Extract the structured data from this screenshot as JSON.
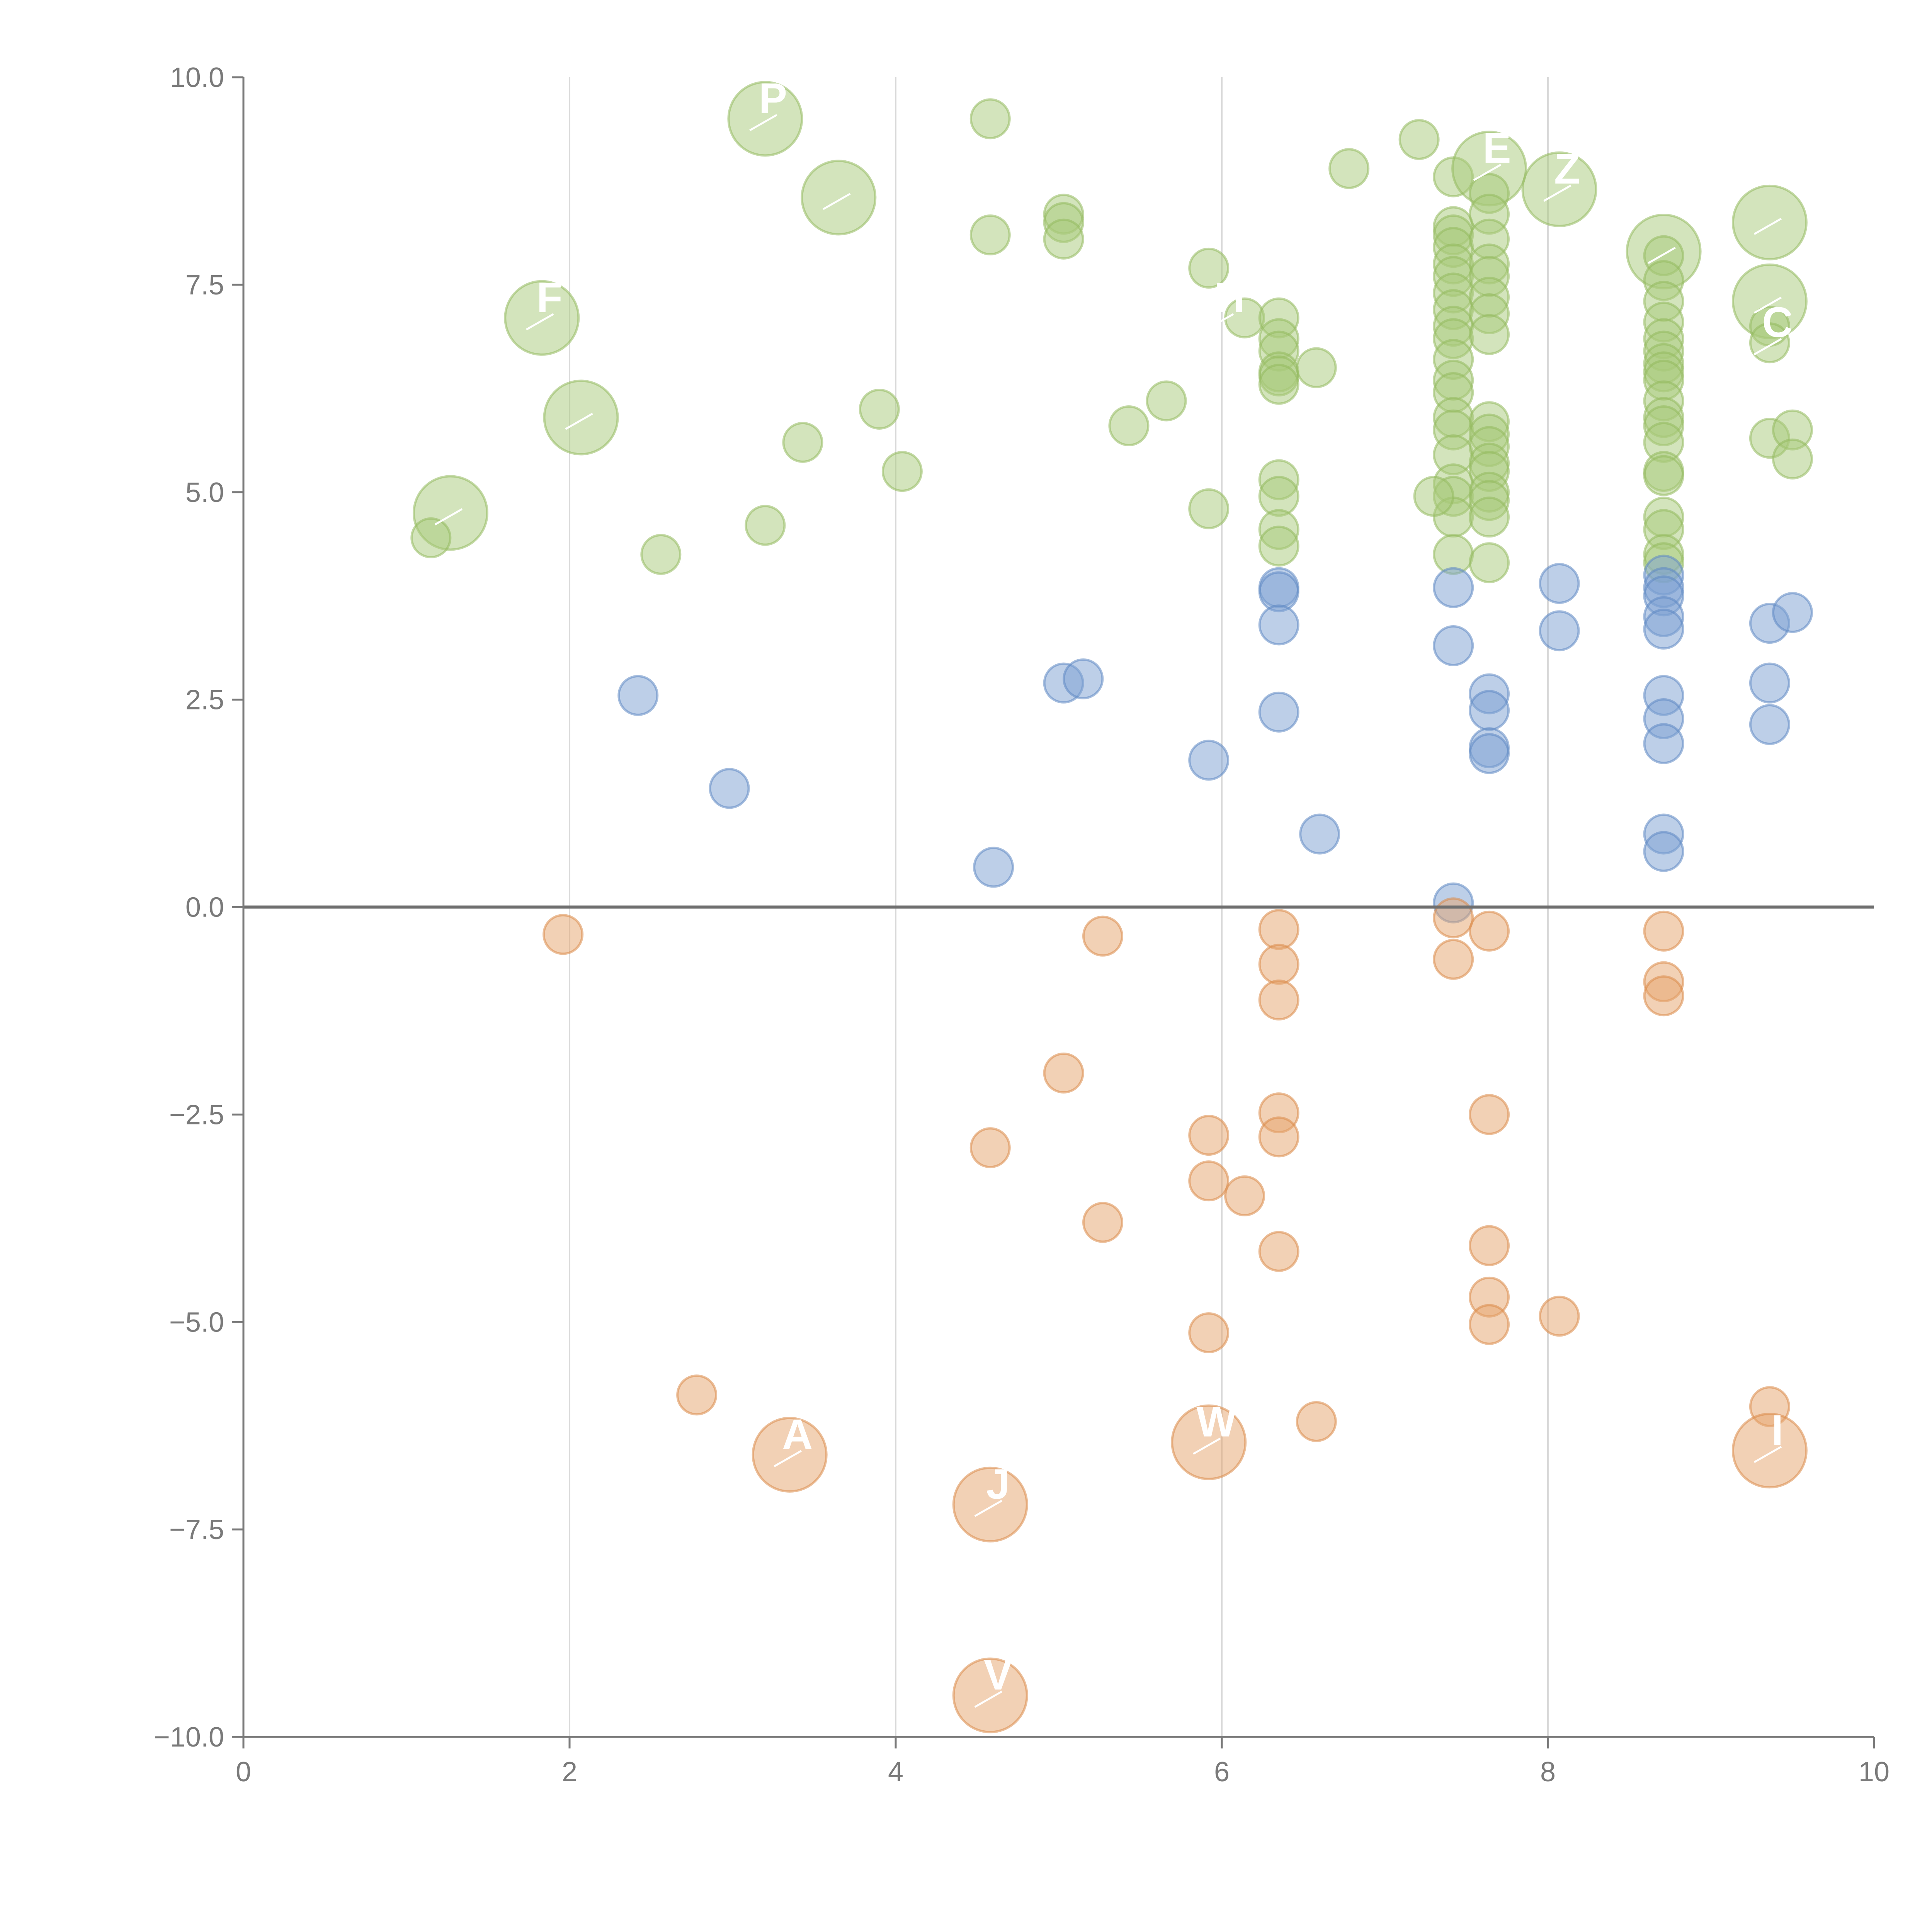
{
  "chart_data": {
    "type": "scatter",
    "title": "",
    "xlabel": "",
    "ylabel": "",
    "xlim": [
      0,
      10
    ],
    "ylim": [
      -10,
      10
    ],
    "x_ticks": [
      0,
      2,
      4,
      6,
      8,
      10
    ],
    "x_tick_labels": [
      "0",
      "2",
      "4",
      "6",
      "8",
      "10"
    ],
    "y_ticks": [
      -10,
      -7.5,
      -5,
      -2.5,
      0,
      2.5,
      5,
      7.5,
      10
    ],
    "y_tick_labels": [
      "−10.0",
      "−7.5",
      "−5.0",
      "−2.5",
      "0.0",
      "2.5",
      "5.0",
      "7.5",
      "10.0"
    ],
    "vertical_grid_at": [
      2,
      4,
      6,
      8
    ],
    "zero_line": true,
    "colors": {
      "green": "#a8c97a",
      "blue": "#7b9fd1",
      "orange": "#e6a36b",
      "green_stroke": "#93ba5e",
      "blue_stroke": "#5f88c2",
      "orange_stroke": "#db8a48"
    },
    "series": [
      {
        "name": "green",
        "points": [
          [
            3.2,
            9.5
          ],
          [
            4.58,
            9.5
          ],
          [
            3.65,
            8.55
          ],
          [
            4.58,
            8.1
          ],
          [
            5.03,
            8.35
          ],
          [
            5.03,
            8.25
          ],
          [
            5.03,
            8.05
          ],
          [
            1.83,
            7.1
          ],
          [
            2.07,
            5.9
          ],
          [
            1.27,
            4.75
          ],
          [
            1.15,
            4.45
          ],
          [
            2.56,
            4.25
          ],
          [
            3.2,
            4.6
          ],
          [
            3.43,
            5.6
          ],
          [
            3.9,
            6.0
          ],
          [
            4.04,
            5.25
          ],
          [
            5.43,
            5.8
          ],
          [
            5.66,
            6.1
          ],
          [
            5.92,
            7.7
          ],
          [
            5.92,
            4.8
          ],
          [
            6.14,
            7.1
          ],
          [
            6.35,
            7.1
          ],
          [
            6.35,
            6.85
          ],
          [
            6.35,
            6.7
          ],
          [
            6.35,
            6.45
          ],
          [
            6.35,
            6.4
          ],
          [
            6.35,
            6.3
          ],
          [
            6.35,
            5.15
          ],
          [
            6.35,
            4.95
          ],
          [
            6.35,
            4.55
          ],
          [
            6.35,
            4.35
          ],
          [
            6.58,
            6.5
          ],
          [
            6.78,
            8.9
          ],
          [
            7.21,
            9.25
          ],
          [
            7.42,
            8.8
          ],
          [
            7.42,
            8.2
          ],
          [
            7.42,
            8.1
          ],
          [
            7.42,
            7.95
          ],
          [
            7.42,
            7.75
          ],
          [
            7.42,
            7.6
          ],
          [
            7.42,
            7.4
          ],
          [
            7.42,
            7.2
          ],
          [
            7.42,
            7.0
          ],
          [
            7.42,
            6.85
          ],
          [
            7.42,
            6.6
          ],
          [
            7.42,
            6.35
          ],
          [
            7.42,
            6.2
          ],
          [
            7.42,
            5.9
          ],
          [
            7.42,
            5.75
          ],
          [
            7.42,
            5.45
          ],
          [
            7.42,
            5.1
          ],
          [
            7.42,
            4.95
          ],
          [
            7.42,
            4.7
          ],
          [
            7.42,
            4.25
          ],
          [
            7.3,
            4.95
          ],
          [
            7.64,
            8.9
          ],
          [
            7.64,
            8.6
          ],
          [
            7.64,
            8.35
          ],
          [
            7.64,
            8.05
          ],
          [
            7.64,
            7.75
          ],
          [
            7.64,
            7.6
          ],
          [
            7.64,
            7.35
          ],
          [
            7.64,
            7.15
          ],
          [
            7.64,
            6.9
          ],
          [
            7.64,
            5.85
          ],
          [
            7.64,
            5.7
          ],
          [
            7.64,
            5.55
          ],
          [
            7.64,
            5.35
          ],
          [
            7.64,
            5.25
          ],
          [
            7.64,
            5.0
          ],
          [
            7.64,
            4.9
          ],
          [
            7.64,
            4.7
          ],
          [
            7.64,
            4.15
          ],
          [
            8.07,
            8.65
          ],
          [
            8.71,
            7.9
          ],
          [
            8.71,
            7.85
          ],
          [
            8.71,
            7.55
          ],
          [
            8.71,
            7.3
          ],
          [
            8.71,
            7.05
          ],
          [
            8.71,
            6.85
          ],
          [
            8.71,
            6.7
          ],
          [
            8.71,
            6.55
          ],
          [
            8.71,
            6.45
          ],
          [
            8.71,
            6.35
          ],
          [
            8.71,
            6.1
          ],
          [
            8.71,
            5.9
          ],
          [
            8.71,
            5.8
          ],
          [
            8.71,
            5.6
          ],
          [
            8.71,
            5.25
          ],
          [
            8.71,
            5.2
          ],
          [
            8.71,
            4.7
          ],
          [
            8.71,
            4.55
          ],
          [
            8.71,
            4.25
          ],
          [
            8.71,
            4.15
          ],
          [
            9.36,
            8.25
          ],
          [
            9.36,
            7.3
          ],
          [
            9.36,
            7.0
          ],
          [
            9.36,
            6.8
          ],
          [
            9.36,
            5.65
          ],
          [
            9.5,
            5.75
          ],
          [
            9.5,
            5.4
          ]
        ],
        "sizes": [
          "L",
          "S",
          "L",
          "S",
          "S",
          "S",
          "S",
          "L",
          "L",
          "L",
          "S",
          "S",
          "S",
          "S",
          "S",
          "S",
          "S",
          "S",
          "S",
          "S",
          "S",
          "S",
          "S",
          "S",
          "S",
          "S",
          "S",
          "S",
          "S",
          "S",
          "S",
          "S",
          "S",
          "S",
          "S",
          "S",
          "S",
          "S",
          "S",
          "S",
          "S",
          "S",
          "S",
          "S",
          "S",
          "S",
          "S",
          "S",
          "S",
          "S",
          "S",
          "S",
          "S",
          "S",
          "S",
          "L",
          "S",
          "S",
          "S",
          "S",
          "S",
          "S",
          "S",
          "S",
          "S",
          "S",
          "S",
          "S",
          "S",
          "S",
          "S",
          "S",
          "S",
          "L",
          "L",
          "S",
          "S",
          "S",
          "S",
          "S",
          "S",
          "S",
          "S",
          "S",
          "S",
          "S",
          "S",
          "S",
          "S",
          "S",
          "S",
          "S",
          "S",
          "S",
          "L",
          "L",
          "S",
          "S",
          "S",
          "S",
          "S"
        ]
      },
      {
        "name": "blue",
        "points": [
          [
            2.42,
            2.55
          ],
          [
            2.98,
            1.43
          ],
          [
            4.6,
            0.48
          ],
          [
            5.03,
            2.7
          ],
          [
            5.15,
            2.75
          ],
          [
            5.92,
            1.77
          ],
          [
            6.35,
            3.85
          ],
          [
            6.35,
            3.8
          ],
          [
            6.35,
            3.4
          ],
          [
            6.35,
            2.35
          ],
          [
            6.6,
            0.88
          ],
          [
            7.42,
            3.85
          ],
          [
            7.42,
            3.15
          ],
          [
            7.42,
            0.05
          ],
          [
            7.64,
            2.57
          ],
          [
            7.64,
            2.37
          ],
          [
            7.64,
            1.92
          ],
          [
            7.64,
            1.85
          ],
          [
            8.07,
            3.9
          ],
          [
            8.07,
            3.33
          ],
          [
            8.71,
            4.0
          ],
          [
            8.71,
            3.85
          ],
          [
            8.71,
            3.75
          ],
          [
            8.71,
            3.5
          ],
          [
            8.71,
            3.35
          ],
          [
            8.71,
            2.55
          ],
          [
            8.71,
            2.27
          ],
          [
            8.71,
            1.97
          ],
          [
            8.71,
            0.88
          ],
          [
            8.71,
            0.67
          ],
          [
            9.36,
            3.42
          ],
          [
            9.36,
            2.7
          ],
          [
            9.36,
            2.2
          ],
          [
            9.5,
            3.55
          ]
        ],
        "sizes": []
      },
      {
        "name": "orange",
        "points": [
          [
            1.96,
            -0.33
          ],
          [
            2.78,
            -5.88
          ],
          [
            3.35,
            -6.6
          ],
          [
            4.58,
            -2.9
          ],
          [
            4.58,
            -7.2
          ],
          [
            4.58,
            -9.5
          ],
          [
            5.03,
            -2.0
          ],
          [
            5.27,
            -0.35
          ],
          [
            5.27,
            -3.8
          ],
          [
            5.92,
            -2.75
          ],
          [
            5.92,
            -3.3
          ],
          [
            5.92,
            -5.13
          ],
          [
            5.92,
            -6.45
          ],
          [
            6.14,
            -3.48
          ],
          [
            6.35,
            -0.27
          ],
          [
            6.35,
            -0.69
          ],
          [
            6.35,
            -1.12
          ],
          [
            6.35,
            -2.48
          ],
          [
            6.35,
            -2.77
          ],
          [
            6.35,
            -4.15
          ],
          [
            6.58,
            -6.2
          ],
          [
            7.42,
            -0.13
          ],
          [
            7.42,
            -0.63
          ],
          [
            7.64,
            -0.29
          ],
          [
            7.64,
            -2.5
          ],
          [
            7.64,
            -4.08
          ],
          [
            7.64,
            -4.7
          ],
          [
            7.64,
            -5.03
          ],
          [
            8.07,
            -4.93
          ],
          [
            8.71,
            -0.29
          ],
          [
            8.71,
            -0.9
          ],
          [
            8.71,
            -1.07
          ],
          [
            9.36,
            -6.02
          ],
          [
            9.36,
            -6.55
          ]
        ],
        "sizes": [
          "S",
          "S",
          "L",
          "S",
          "L",
          "L",
          "S",
          "S",
          "S",
          "S",
          "S",
          "S",
          "L",
          "S",
          "S",
          "S",
          "S",
          "S",
          "S",
          "S",
          "S",
          "S",
          "S",
          "S",
          "S",
          "S",
          "S",
          "S",
          "S",
          "S",
          "S",
          "S",
          "S",
          "L"
        ]
      }
    ],
    "bubble_labels": [
      {
        "text": "P",
        "x": 3.2,
        "y": 9.5
      },
      {
        "text": "",
        "x": 3.65,
        "y": 8.55
      },
      {
        "text": "F",
        "x": 1.83,
        "y": 7.1
      },
      {
        "text": "",
        "x": 2.07,
        "y": 5.9
      },
      {
        "text": "",
        "x": 1.27,
        "y": 4.75
      },
      {
        "text": "E",
        "x": 7.64,
        "y": 8.9
      },
      {
        "text": "Z",
        "x": 8.07,
        "y": 8.65
      },
      {
        "text": "",
        "x": 8.71,
        "y": 7.9
      },
      {
        "text": "",
        "x": 9.36,
        "y": 8.25
      },
      {
        "text": "",
        "x": 9.36,
        "y": 7.3
      },
      {
        "text": "C",
        "x": 9.36,
        "y": 6.8
      },
      {
        "text": "H",
        "x": 6.0,
        "y": 7.1
      },
      {
        "text": "A",
        "x": 3.35,
        "y": -6.6
      },
      {
        "text": "J",
        "x": 4.58,
        "y": -7.2
      },
      {
        "text": "V",
        "x": 4.58,
        "y": -9.5
      },
      {
        "text": "W",
        "x": 5.92,
        "y": -6.45
      },
      {
        "text": "I",
        "x": 9.36,
        "y": -6.55
      }
    ]
  }
}
